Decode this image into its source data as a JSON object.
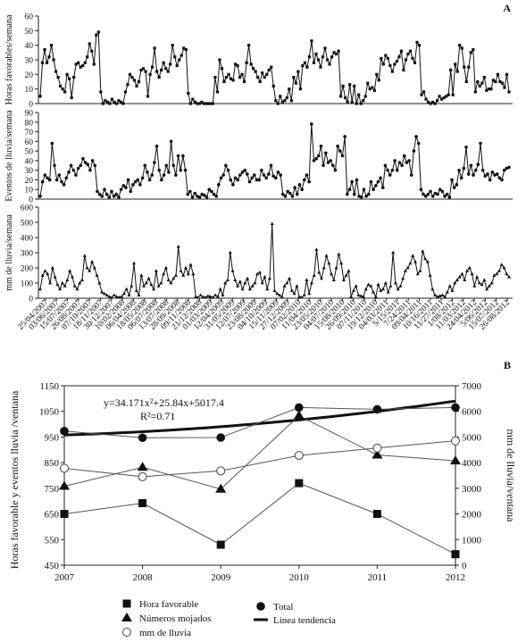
{
  "chart_data": [
    {
      "type": "line",
      "panel": "A",
      "ylabel": "Horas favorables/semana",
      "ylim": [
        0,
        60
      ],
      "yticks": [
        0,
        10,
        20,
        30,
        40,
        50,
        60
      ],
      "values": [
        5,
        28,
        37,
        28,
        32,
        40,
        30,
        22,
        18,
        12,
        10,
        8,
        20,
        17,
        4,
        18,
        27,
        28,
        25,
        26,
        28,
        32,
        41,
        36,
        27,
        47,
        49,
        8,
        0,
        2,
        1,
        0,
        3,
        1,
        0,
        2,
        1,
        0,
        8,
        13,
        20,
        18,
        16,
        12,
        15,
        23,
        24,
        22,
        5,
        20,
        25,
        38,
        22,
        18,
        23,
        28,
        24,
        22,
        27,
        40,
        32,
        26,
        30,
        33,
        38,
        37,
        7,
        0,
        3,
        1,
        0,
        0,
        1,
        0,
        0,
        0,
        0,
        0,
        18,
        8,
        30,
        24,
        15,
        18,
        20,
        17,
        16,
        27,
        26,
        18,
        20,
        15,
        28,
        40,
        27,
        24,
        22,
        18,
        15,
        21,
        18,
        20,
        23,
        25,
        12,
        2,
        0,
        5,
        1,
        2,
        4,
        10,
        2,
        18,
        14,
        22,
        10,
        26,
        28,
        25,
        32,
        43,
        28,
        34,
        30,
        25,
        32,
        38,
        30,
        27,
        32,
        35,
        34,
        36,
        5,
        12,
        4,
        1,
        13,
        1,
        12,
        0,
        6,
        0,
        2,
        5,
        14,
        10,
        11,
        9,
        20,
        16,
        31,
        27,
        33,
        31,
        26,
        22,
        27,
        29,
        32,
        36,
        23,
        30,
        34,
        36,
        31,
        28,
        42,
        40,
        6,
        8,
        3,
        1,
        0,
        1,
        0,
        2,
        5,
        3,
        4,
        5,
        6,
        23,
        6,
        27,
        22,
        40,
        38,
        25,
        15,
        25,
        35,
        37,
        8,
        15,
        12,
        14,
        18,
        9,
        10,
        10,
        16,
        15,
        20,
        15,
        14,
        11,
        20,
        8
      ],
      "xlabels": [
        "25/04/2007",
        "03/06/2007",
        "15/07/2007",
        "26/08/2007",
        "07/10/2007",
        "18/11/2007",
        "30/12/2007",
        "10/02/2008",
        "06/04/2008",
        "18/05/2008",
        "06/07/2008",
        "13/07/2008",
        "28/09/2008",
        "09/11/2008",
        "21/12/2008",
        "01/03/2009",
        "12/04/2009",
        "31/05/2009",
        "12/07/2009",
        "23/08/2009",
        "04/10/2009",
        "15/11/2009",
        "27/12/2009",
        "07/02/2010",
        "11/04/2010",
        "23/05/2010",
        "04/07/2010",
        "15/08/2010",
        "26/09/2010",
        "07/11/2010",
        "19/12/2010",
        "04/03/2011",
        "5/15/2011",
        "7/24/2011",
        "09/04/2011",
        "10/16/2011",
        "11/27/2011",
        "1/08/2012",
        "11/03/2012",
        "24/04/2012",
        "5/06/2012",
        "15/07/2012",
        "26/08/2012"
      ]
    },
    {
      "type": "line",
      "panel": "A",
      "ylabel": "Eventos de lluvia/semana",
      "ylim": [
        0,
        90
      ],
      "yticks": [
        0,
        10,
        20,
        30,
        40,
        50,
        60,
        70,
        80,
        90
      ],
      "values": [
        3,
        18,
        25,
        22,
        20,
        58,
        35,
        20,
        25,
        18,
        15,
        22,
        28,
        35,
        30,
        25,
        32,
        35,
        42,
        38,
        36,
        30,
        40,
        35,
        8,
        5,
        3,
        10,
        5,
        2,
        8,
        3,
        5,
        2,
        10,
        14,
        12,
        20,
        8,
        15,
        18,
        20,
        15,
        22,
        35,
        28,
        20,
        25,
        38,
        55,
        30,
        20,
        25,
        35,
        28,
        60,
        35,
        25,
        45,
        30,
        45,
        30,
        5,
        8,
        2,
        6,
        3,
        2,
        5,
        4,
        2,
        10,
        8,
        5,
        3,
        15,
        22,
        25,
        35,
        30,
        20,
        15,
        22,
        20,
        25,
        28,
        30,
        26,
        18,
        22,
        25,
        20,
        20,
        30,
        25,
        22,
        26,
        35,
        24,
        22,
        28,
        25,
        5,
        3,
        8,
        6,
        3,
        12,
        5,
        15,
        10,
        20,
        25,
        18,
        78,
        40,
        42,
        45,
        55,
        35,
        48,
        38,
        40,
        35,
        30,
        55,
        50,
        45,
        65,
        5,
        10,
        18,
        5,
        20,
        3,
        2,
        10,
        3,
        5,
        18,
        10,
        14,
        18,
        22,
        12,
        35,
        30,
        25,
        30,
        40,
        30,
        38,
        35,
        45,
        38,
        40,
        25,
        50,
        65,
        58,
        10,
        5,
        3,
        5,
        8,
        3,
        6,
        5,
        10,
        8,
        3,
        5,
        2,
        20,
        12,
        15,
        30,
        22,
        32,
        54,
        26,
        35,
        25,
        30,
        36,
        58,
        30,
        24,
        26,
        20,
        28,
        25,
        26,
        22,
        20,
        30,
        32,
        33
      ]
    },
    {
      "type": "line",
      "panel": "A",
      "ylabel": "mm de lluvia/semana",
      "ylim": [
        0,
        600
      ],
      "yticks": [
        0,
        100,
        200,
        300,
        400,
        500,
        600
      ],
      "values": [
        60,
        150,
        180,
        160,
        100,
        200,
        140,
        90,
        60,
        100,
        80,
        120,
        180,
        140,
        80,
        60,
        100,
        120,
        280,
        200,
        180,
        240,
        200,
        150,
        100,
        40,
        30,
        20,
        10,
        5,
        20,
        10,
        5,
        10,
        30,
        60,
        20,
        80,
        230,
        50,
        20,
        150,
        80,
        100,
        130,
        90,
        60,
        180,
        80,
        100,
        160,
        200,
        120,
        100,
        130,
        150,
        340,
        180,
        150,
        200,
        160,
        220,
        160,
        10,
        5,
        20,
        8,
        5,
        15,
        10,
        5,
        20,
        10,
        60,
        20,
        100,
        120,
        300,
        180,
        120,
        80,
        110,
        60,
        100,
        130,
        60,
        80,
        100,
        160,
        170,
        100,
        140,
        60,
        130,
        490,
        50,
        30,
        20,
        10,
        80,
        100,
        130,
        50,
        30,
        80,
        10,
        5,
        20,
        120,
        30,
        100,
        150,
        320,
        170,
        130,
        200,
        280,
        230,
        160,
        120,
        200,
        290,
        230,
        120,
        150,
        180,
        10,
        50,
        80,
        20,
        15,
        10,
        60,
        90,
        80,
        40,
        10,
        90,
        50,
        60,
        100,
        40,
        80,
        300,
        100,
        60,
        80,
        130,
        180,
        200,
        230,
        280,
        240,
        160,
        180,
        310,
        260,
        240,
        150,
        60,
        20,
        10,
        15,
        20,
        10,
        40,
        80,
        50,
        100,
        120,
        140,
        160,
        120,
        180,
        200,
        160,
        80,
        140,
        100,
        90,
        120,
        60,
        80,
        100,
        150,
        160,
        180,
        220,
        200,
        160,
        140
      ]
    },
    {
      "type": "line",
      "panel": "B",
      "x": [
        "2007",
        "2008",
        "2009",
        "2010",
        "2011",
        "2012"
      ],
      "ylabel": "Horas favorable y eventos lluvia /ventana",
      "ylabel_right": "mm de lluvia/ventana",
      "ylim": [
        450,
        1150
      ],
      "yticks": [
        450,
        550,
        650,
        750,
        850,
        950,
        1050,
        1150
      ],
      "ylim_right": [
        0,
        7000
      ],
      "yticks_right": [
        0,
        1000,
        2000,
        3000,
        4000,
        5000,
        6000,
        7000
      ],
      "annotation_equation": "y=34.171x²+25.84x+5017.4",
      "annotation_r2": "R²=0.71",
      "series": [
        {
          "name": "Hora favorable",
          "marker": "square",
          "axis": "left",
          "values": [
            650,
            692,
            530,
            770,
            650,
            493
          ]
        },
        {
          "name": "Números mojados",
          "marker": "triangle",
          "axis": "left",
          "values": [
            758,
            832,
            747,
            1033,
            880,
            857
          ]
        },
        {
          "name": "mm de lluvia",
          "marker": "circle-open",
          "axis": "left",
          "values": [
            828,
            795,
            818,
            878,
            907,
            935
          ]
        },
        {
          "name": "Total",
          "marker": "circle-filled",
          "axis": "left",
          "values": [
            973,
            947,
            948,
            1065,
            1058,
            1065
          ]
        },
        {
          "name": "Línea tendencia",
          "marker": "line-thick",
          "axis": "right",
          "poly": [
            34.171,
            25.84,
            5017.4
          ]
        }
      ]
    }
  ]
}
